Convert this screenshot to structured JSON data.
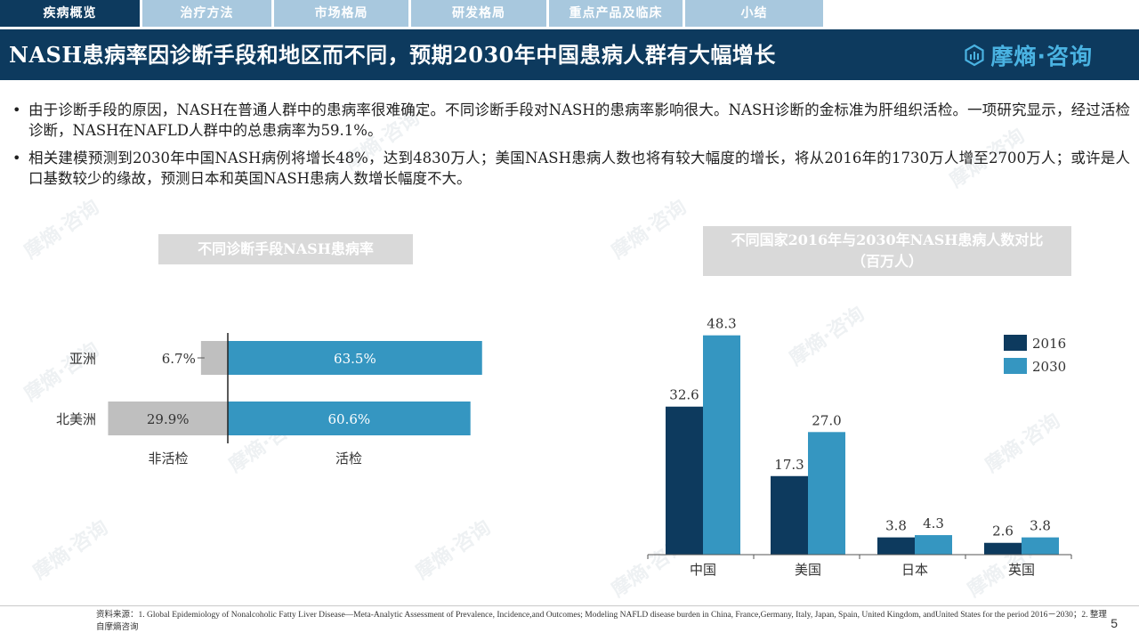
{
  "nav": {
    "tabs": [
      {
        "label": "疾病概览",
        "active": true
      },
      {
        "label": "治疗方法",
        "active": false
      },
      {
        "label": "市场格局",
        "active": false
      },
      {
        "label": "研发格局",
        "active": false
      },
      {
        "label": "重点产品及临床",
        "active": false
      },
      {
        "label": "小结",
        "active": false
      }
    ]
  },
  "header": {
    "title": "NASH患病率因诊断手段和地区而不同，预期2030年中国患病人群有大幅增长",
    "brand": "摩熵·咨询"
  },
  "bullets": [
    "由于诊断手段的原因，NASH在普通人群中的患病率很难确定。不同诊断手段对NASH的患病率影响很大。NASH诊断的金标准为肝组织活检。一项研究显示，经过活检诊断，NASH在NAFLD人群中的总患病率为59.1%。",
    "相关建模预测到2030年中国NASH病例将增长48%，达到4830万人；美国NASH患病人数也将有较大幅度的增长，将从2016年的1730万人增至2700万人；或许是人口基数较少的缘故，预测日本和英国NASH患病人数增长幅度不大。"
  ],
  "chart_data": [
    {
      "type": "bar",
      "orientation": "horizontal-diverging",
      "title": "不同诊断手段NASH患病率",
      "categories": [
        "亚洲",
        "北美洲"
      ],
      "series": [
        {
          "name": "非活检",
          "values": [
            6.7,
            29.9
          ],
          "labels": [
            "6.7%",
            "29.9%"
          ],
          "color": "#bfbfbf"
        },
        {
          "name": "活检",
          "values": [
            63.5,
            60.6
          ],
          "labels": [
            "63.5%",
            "60.6%"
          ],
          "color": "#3596c1"
        }
      ],
      "unit": "%"
    },
    {
      "type": "bar",
      "title": "不同国家2016年与2030年NASH患病人数对比",
      "subtitle": "（百万人）",
      "categories": [
        "中国",
        "美国",
        "日本",
        "英国"
      ],
      "series": [
        {
          "name": "2016",
          "values": [
            32.6,
            17.3,
            3.8,
            2.6
          ],
          "color": "#0d3a5e"
        },
        {
          "name": "2030",
          "values": [
            48.3,
            27.0,
            4.3,
            3.8
          ],
          "color": "#3596c1"
        }
      ],
      "labels": [
        [
          "32.6",
          "17.3",
          "3.8",
          "2.6"
        ],
        [
          "48.3",
          "27.0",
          "4.3",
          "3.8"
        ]
      ],
      "ylim": [
        0,
        50
      ],
      "legend": "right"
    }
  ],
  "footer": {
    "source": "资料来源：1. Global Epidemiology of Nonalcoholic Fatty Liver Disease—Meta-Analytic Assessment of Prevalence, Incidence,and Outcomes; Modeling NAFLD disease burden in China, France,Germany, Italy, Japan, Spain, United Kingdom, andUnited States for the period 2016－2030；2. 整理自摩熵咨询",
    "page": "5"
  },
  "colors": {
    "navy": "#0d3a5e",
    "accent": "#3596c1",
    "tab": "#a8c8de",
    "grey": "#bfbfbf"
  }
}
